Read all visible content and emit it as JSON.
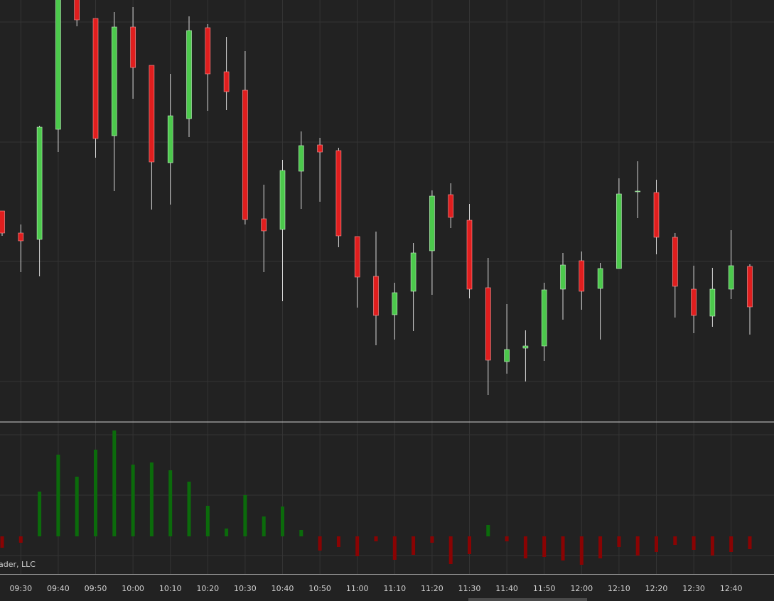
{
  "chart_data": [
    {
      "type": "candlestick",
      "up_color": "#4cc94c",
      "down_color": "#e01e1e",
      "wick_color": "#d8d8d8",
      "ylim": [
        0,
        59.3
      ],
      "open": [
        29.6,
        26.5,
        25.6,
        41.1,
        59.8,
        56.7,
        40.2,
        55.5,
        50.1,
        36.4,
        42.6,
        55.4,
        49.2,
        46.6,
        28.5,
        27.0,
        35.2,
        38.9,
        38.1,
        26.0,
        20.4,
        15.0,
        18.3,
        24.0,
        31.9,
        28.3,
        18.8,
        8.4,
        10.3,
        10.6,
        18.6,
        22.6,
        18.7,
        21.5,
        32.3,
        32.2,
        25.9,
        18.6,
        14.8,
        18.6,
        21.8
      ],
      "high": [
        29.6,
        27.7,
        41.6,
        61.3,
        60.3,
        56.7,
        57.6,
        58.3,
        50.1,
        48.9,
        57.0,
        55.9,
        54.1,
        52.1,
        33.3,
        36.8,
        40.8,
        39.9,
        38.5,
        26.0,
        26.7,
        19.5,
        25.1,
        32.5,
        33.5,
        30.6,
        23.0,
        16.5,
        12.8,
        19.5,
        23.7,
        23.9,
        22.3,
        34.2,
        36.6,
        34.0,
        26.5,
        21.9,
        21.6,
        26.9,
        22.1
      ],
      "low": [
        26.1,
        21.0,
        20.4,
        37.9,
        55.6,
        37.1,
        32.4,
        45.4,
        29.8,
        30.5,
        40.0,
        43.7,
        43.8,
        27.7,
        21.0,
        16.9,
        29.9,
        30.9,
        24.5,
        16.0,
        10.7,
        11.5,
        12.7,
        17.8,
        27.2,
        17.3,
        3.7,
        6.7,
        5.6,
        8.5,
        14.3,
        15.7,
        11.5,
        21.5,
        28.6,
        23.5,
        14.6,
        12.4,
        13.3,
        17.2,
        12.2
      ],
      "close": [
        26.5,
        25.4,
        41.4,
        60.8,
        56.5,
        39.8,
        55.5,
        49.8,
        36.5,
        43.0,
        55.0,
        48.9,
        46.4,
        28.4,
        26.8,
        35.3,
        38.8,
        37.9,
        26.1,
        20.3,
        14.9,
        18.1,
        23.7,
        31.7,
        28.7,
        18.6,
        8.6,
        10.1,
        10.6,
        18.5,
        22.0,
        18.3,
        21.5,
        32.0,
        32.4,
        25.9,
        19.0,
        14.9,
        18.6,
        21.9,
        16.1
      ]
    },
    {
      "type": "bar",
      "positive_color": "#0b6b0b",
      "negative_color": "#8a0303",
      "ylim": [
        -53,
        161
      ],
      "categories": [
        null,
        "09:30",
        null,
        "09:40",
        null,
        "09:50",
        null,
        "10:00",
        null,
        "10:10",
        null,
        "10:20",
        null,
        "10:30",
        null,
        "10:40",
        null,
        "10:50",
        null,
        "11:00",
        null,
        "11:10",
        null,
        "11:20",
        null,
        "11:30",
        null,
        "11:40",
        null,
        "11:50",
        null,
        "12:00",
        null,
        "12:10",
        null,
        "12:20",
        null,
        "12:30",
        null,
        "12:40",
        null
      ],
      "values": [
        -16,
        -9,
        63,
        115,
        84,
        122,
        149,
        101,
        104,
        93,
        77,
        43,
        11,
        58,
        28,
        42,
        9,
        -20,
        -15,
        -28,
        -7,
        -33,
        -26,
        -9,
        -39,
        -25,
        16,
        -7,
        -31,
        -29,
        -34,
        -40,
        -31,
        -15,
        -27,
        -22,
        -12,
        -19,
        -27,
        -22,
        -18
      ]
    }
  ],
  "watermark": "ader, LLC"
}
